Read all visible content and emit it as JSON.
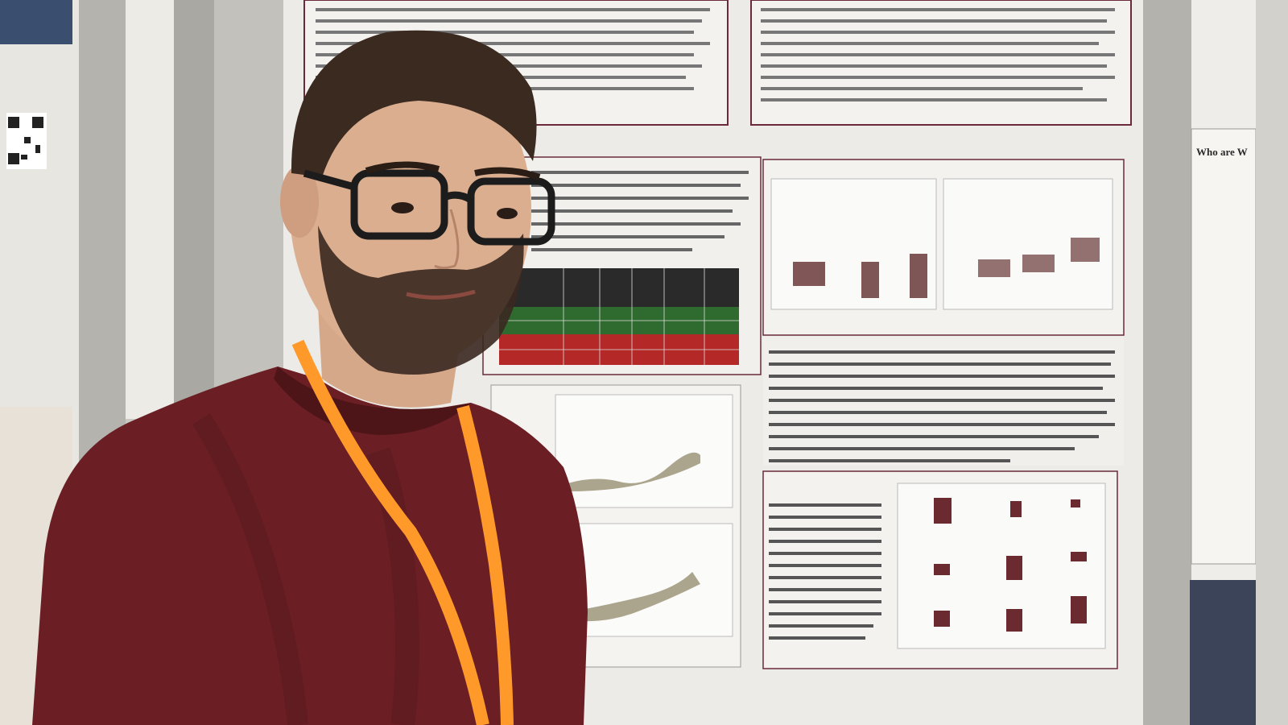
{
  "scene": {
    "description_hidden": "",
    "colors": {
      "wall": "#c8c7c2",
      "poster_paper": "#eeeeea",
      "poster_border": "#5a2a3a",
      "sweater": "#6b1f24",
      "lanyard": "#ff9a2a",
      "glasses": "#1c1c1c",
      "hair": "#3a2a20",
      "table_green": "#2f6b2f",
      "table_red": "#b82a2a",
      "table_dark": "#2a2a2a",
      "bar_dark": "#6a3a3a"
    }
  },
  "poster_visible_text": {
    "right_panel_title_fragment": "Who are W"
  }
}
